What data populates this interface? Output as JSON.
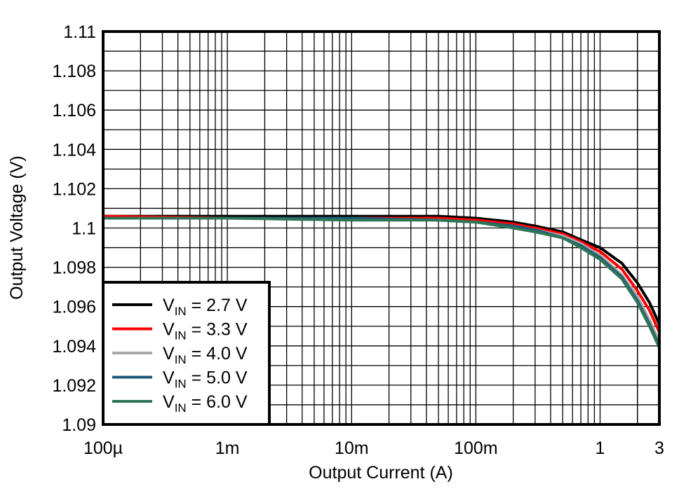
{
  "chart_data": {
    "type": "line",
    "title": "",
    "xlabel": "Output Current (A)",
    "ylabel": "Output Voltage (V)",
    "xscale": "log",
    "xlim": [
      0.0001,
      3
    ],
    "ylim": [
      1.09,
      1.11
    ],
    "grid": true,
    "legend_position": "bottom-left",
    "x_ticks": [
      {
        "value": 0.0001,
        "label": "100µ"
      },
      {
        "value": 0.001,
        "label": "1m"
      },
      {
        "value": 0.01,
        "label": "10m"
      },
      {
        "value": 0.1,
        "label": "100m"
      },
      {
        "value": 1,
        "label": "1"
      },
      {
        "value": 3,
        "label": "3"
      }
    ],
    "y_ticks": [
      {
        "value": 1.09,
        "label": "1.09"
      },
      {
        "value": 1.092,
        "label": "1.092"
      },
      {
        "value": 1.094,
        "label": "1.094"
      },
      {
        "value": 1.096,
        "label": "1.096"
      },
      {
        "value": 1.098,
        "label": "1.098"
      },
      {
        "value": 1.1,
        "label": "1.1"
      },
      {
        "value": 1.102,
        "label": "1.102"
      },
      {
        "value": 1.104,
        "label": "1.104"
      },
      {
        "value": 1.106,
        "label": "1.106"
      },
      {
        "value": 1.108,
        "label": "1.108"
      },
      {
        "value": 1.11,
        "label": "1.11"
      }
    ],
    "x": [
      0.0001,
      0.001,
      0.01,
      0.05,
      0.1,
      0.2,
      0.3,
      0.5,
      0.7,
      1,
      1.5,
      2,
      2.5,
      3
    ],
    "series": [
      {
        "name": "V_IN = 2.7 V",
        "label_main": "V",
        "label_sub": "IN",
        "label_rest": " = 2.7 V",
        "color": "#000000",
        "values": [
          1.1006,
          1.1006,
          1.1006,
          1.1006,
          1.1005,
          1.1003,
          1.1001,
          1.0998,
          1.0994,
          1.099,
          1.0982,
          1.0972,
          1.0962,
          1.0951
        ]
      },
      {
        "name": "V_IN = 3.3 V",
        "label_main": "V",
        "label_sub": "IN",
        "label_rest": " = 3.3 V",
        "color": "#ff0000",
        "values": [
          1.1006,
          1.1005,
          1.1005,
          1.1005,
          1.1004,
          1.1002,
          1.1,
          1.0997,
          1.0993,
          1.0988,
          1.0979,
          1.0968,
          1.0958,
          1.0947
        ]
      },
      {
        "name": "V_IN = 4.0 V",
        "label_main": "V",
        "label_sub": "IN",
        "label_rest": " = 4.0 V",
        "color": "#a8a8a8",
        "values": [
          1.1005,
          1.1005,
          1.1005,
          1.1004,
          1.1003,
          1.1001,
          1.0999,
          1.0996,
          1.0992,
          1.0986,
          1.0976,
          1.0965,
          1.0953,
          1.0942
        ]
      },
      {
        "name": "V_IN = 5.0 V",
        "label_main": "V",
        "label_sub": "IN",
        "label_rest": " = 5.0 V",
        "color": "#1f5878",
        "values": [
          1.1005,
          1.1005,
          1.1005,
          1.1004,
          1.1003,
          1.1001,
          1.0999,
          1.0995,
          1.0991,
          1.0985,
          1.0975,
          1.0963,
          1.0951,
          1.094
        ]
      },
      {
        "name": "V_IN = 6.0 V",
        "label_main": "V",
        "label_sub": "IN",
        "label_rest": " = 6.0 V",
        "color": "#2e7558",
        "values": [
          1.1005,
          1.1005,
          1.1004,
          1.1004,
          1.1003,
          1.1,
          1.0998,
          1.0995,
          1.099,
          1.0984,
          1.0974,
          1.0962,
          1.095,
          1.0939
        ]
      }
    ]
  }
}
